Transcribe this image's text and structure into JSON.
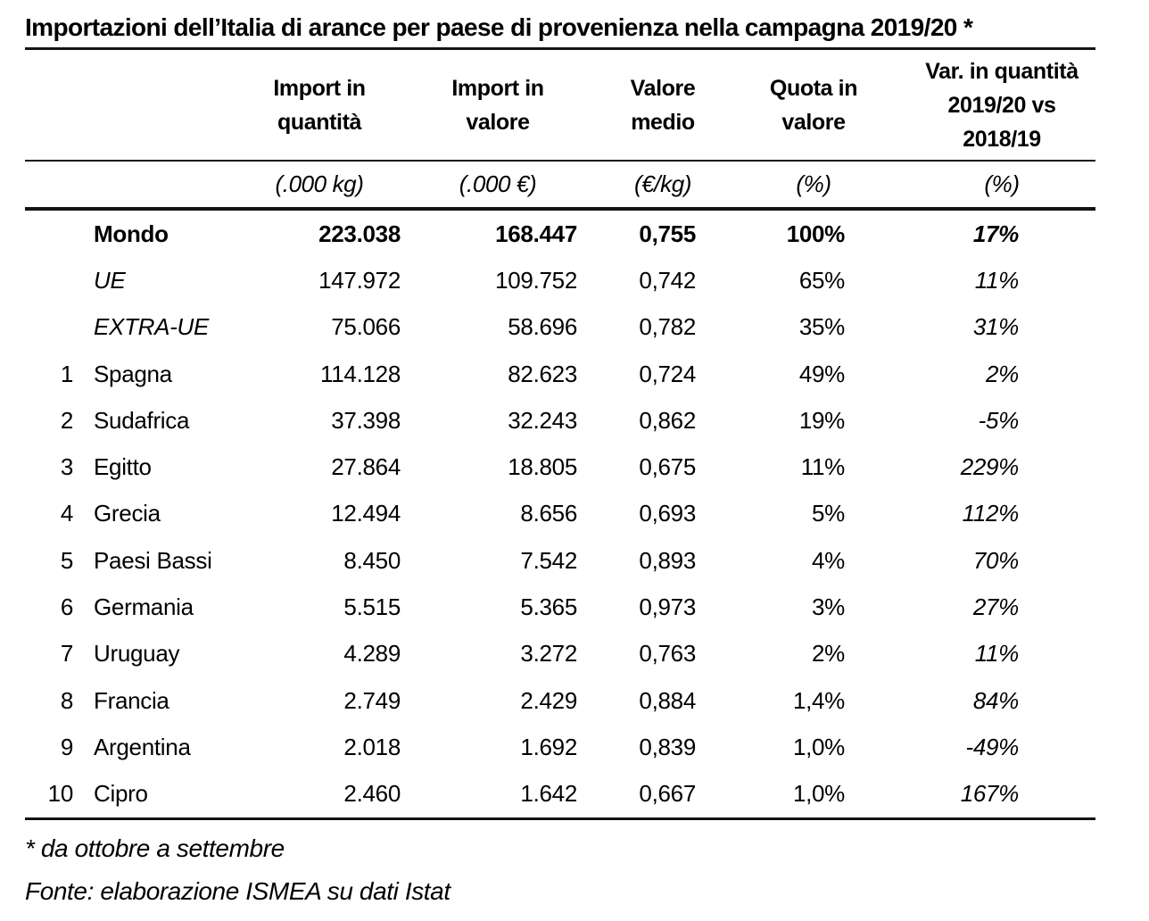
{
  "title": "Importazioni dell’Italia di arance per paese di provenienza nella campagna 2019/20 *",
  "table": {
    "headers": [
      {
        "lines": [
          "Import in",
          "quantità"
        ],
        "unit": "(.000 kg)"
      },
      {
        "lines": [
          "Import in",
          "valore"
        ],
        "unit": "(.000 €)"
      },
      {
        "lines": [
          "Valore",
          "medio"
        ],
        "unit": "(€/kg)"
      },
      {
        "lines": [
          "Quota in",
          "valore"
        ],
        "unit": "(%)"
      },
      {
        "lines": [
          "Var. in quantità",
          "2019/20 vs",
          "2018/19"
        ],
        "unit": "(%)"
      }
    ],
    "rows": [
      {
        "rank": "",
        "name": "Mondo",
        "import_qty": "223.038",
        "import_val": "168.447",
        "avg_val": "0,755",
        "share": "100%",
        "variation": "17%"
      },
      {
        "rank": "",
        "name": "UE",
        "import_qty": "147.972",
        "import_val": "109.752",
        "avg_val": "0,742",
        "share": "65%",
        "variation": "11%"
      },
      {
        "rank": "",
        "name": "EXTRA-UE",
        "import_qty": "75.066",
        "import_val": "58.696",
        "avg_val": "0,782",
        "share": "35%",
        "variation": "31%"
      },
      {
        "rank": "1",
        "name": "Spagna",
        "import_qty": "114.128",
        "import_val": "82.623",
        "avg_val": "0,724",
        "share": "49%",
        "variation": "2%"
      },
      {
        "rank": "2",
        "name": "Sudafrica",
        "import_qty": "37.398",
        "import_val": "32.243",
        "avg_val": "0,862",
        "share": "19%",
        "variation": "-5%"
      },
      {
        "rank": "3",
        "name": "Egitto",
        "import_qty": "27.864",
        "import_val": "18.805",
        "avg_val": "0,675",
        "share": "11%",
        "variation": "229%"
      },
      {
        "rank": "4",
        "name": "Grecia",
        "import_qty": "12.494",
        "import_val": "8.656",
        "avg_val": "0,693",
        "share": "5%",
        "variation": "112%"
      },
      {
        "rank": "5",
        "name": "Paesi Bassi",
        "import_qty": "8.450",
        "import_val": "7.542",
        "avg_val": "0,893",
        "share": "4%",
        "variation": "70%"
      },
      {
        "rank": "6",
        "name": "Germania",
        "import_qty": "5.515",
        "import_val": "5.365",
        "avg_val": "0,973",
        "share": "3%",
        "variation": "27%"
      },
      {
        "rank": "7",
        "name": "Uruguay",
        "import_qty": "4.289",
        "import_val": "3.272",
        "avg_val": "0,763",
        "share": "2%",
        "variation": "11%"
      },
      {
        "rank": "8",
        "name": "Francia",
        "import_qty": "2.749",
        "import_val": "2.429",
        "avg_val": "0,884",
        "share": "1,4%",
        "variation": "84%"
      },
      {
        "rank": "9",
        "name": "Argentina",
        "import_qty": "2.018",
        "import_val": "1.692",
        "avg_val": "0,839",
        "share": "1,0%",
        "variation": "-49%"
      },
      {
        "rank": "10",
        "name": "Cipro",
        "import_qty": "2.460",
        "import_val": "1.642",
        "avg_val": "0,667",
        "share": "1,0%",
        "variation": "167%"
      }
    ]
  },
  "footnotes": {
    "asterisk": "* da ottobre a settembre",
    "source": "Fonte: elaborazione ISMEA su dati Istat"
  },
  "colors": {
    "text": "#000000",
    "rule": "#141414",
    "background": "#ffffff"
  }
}
